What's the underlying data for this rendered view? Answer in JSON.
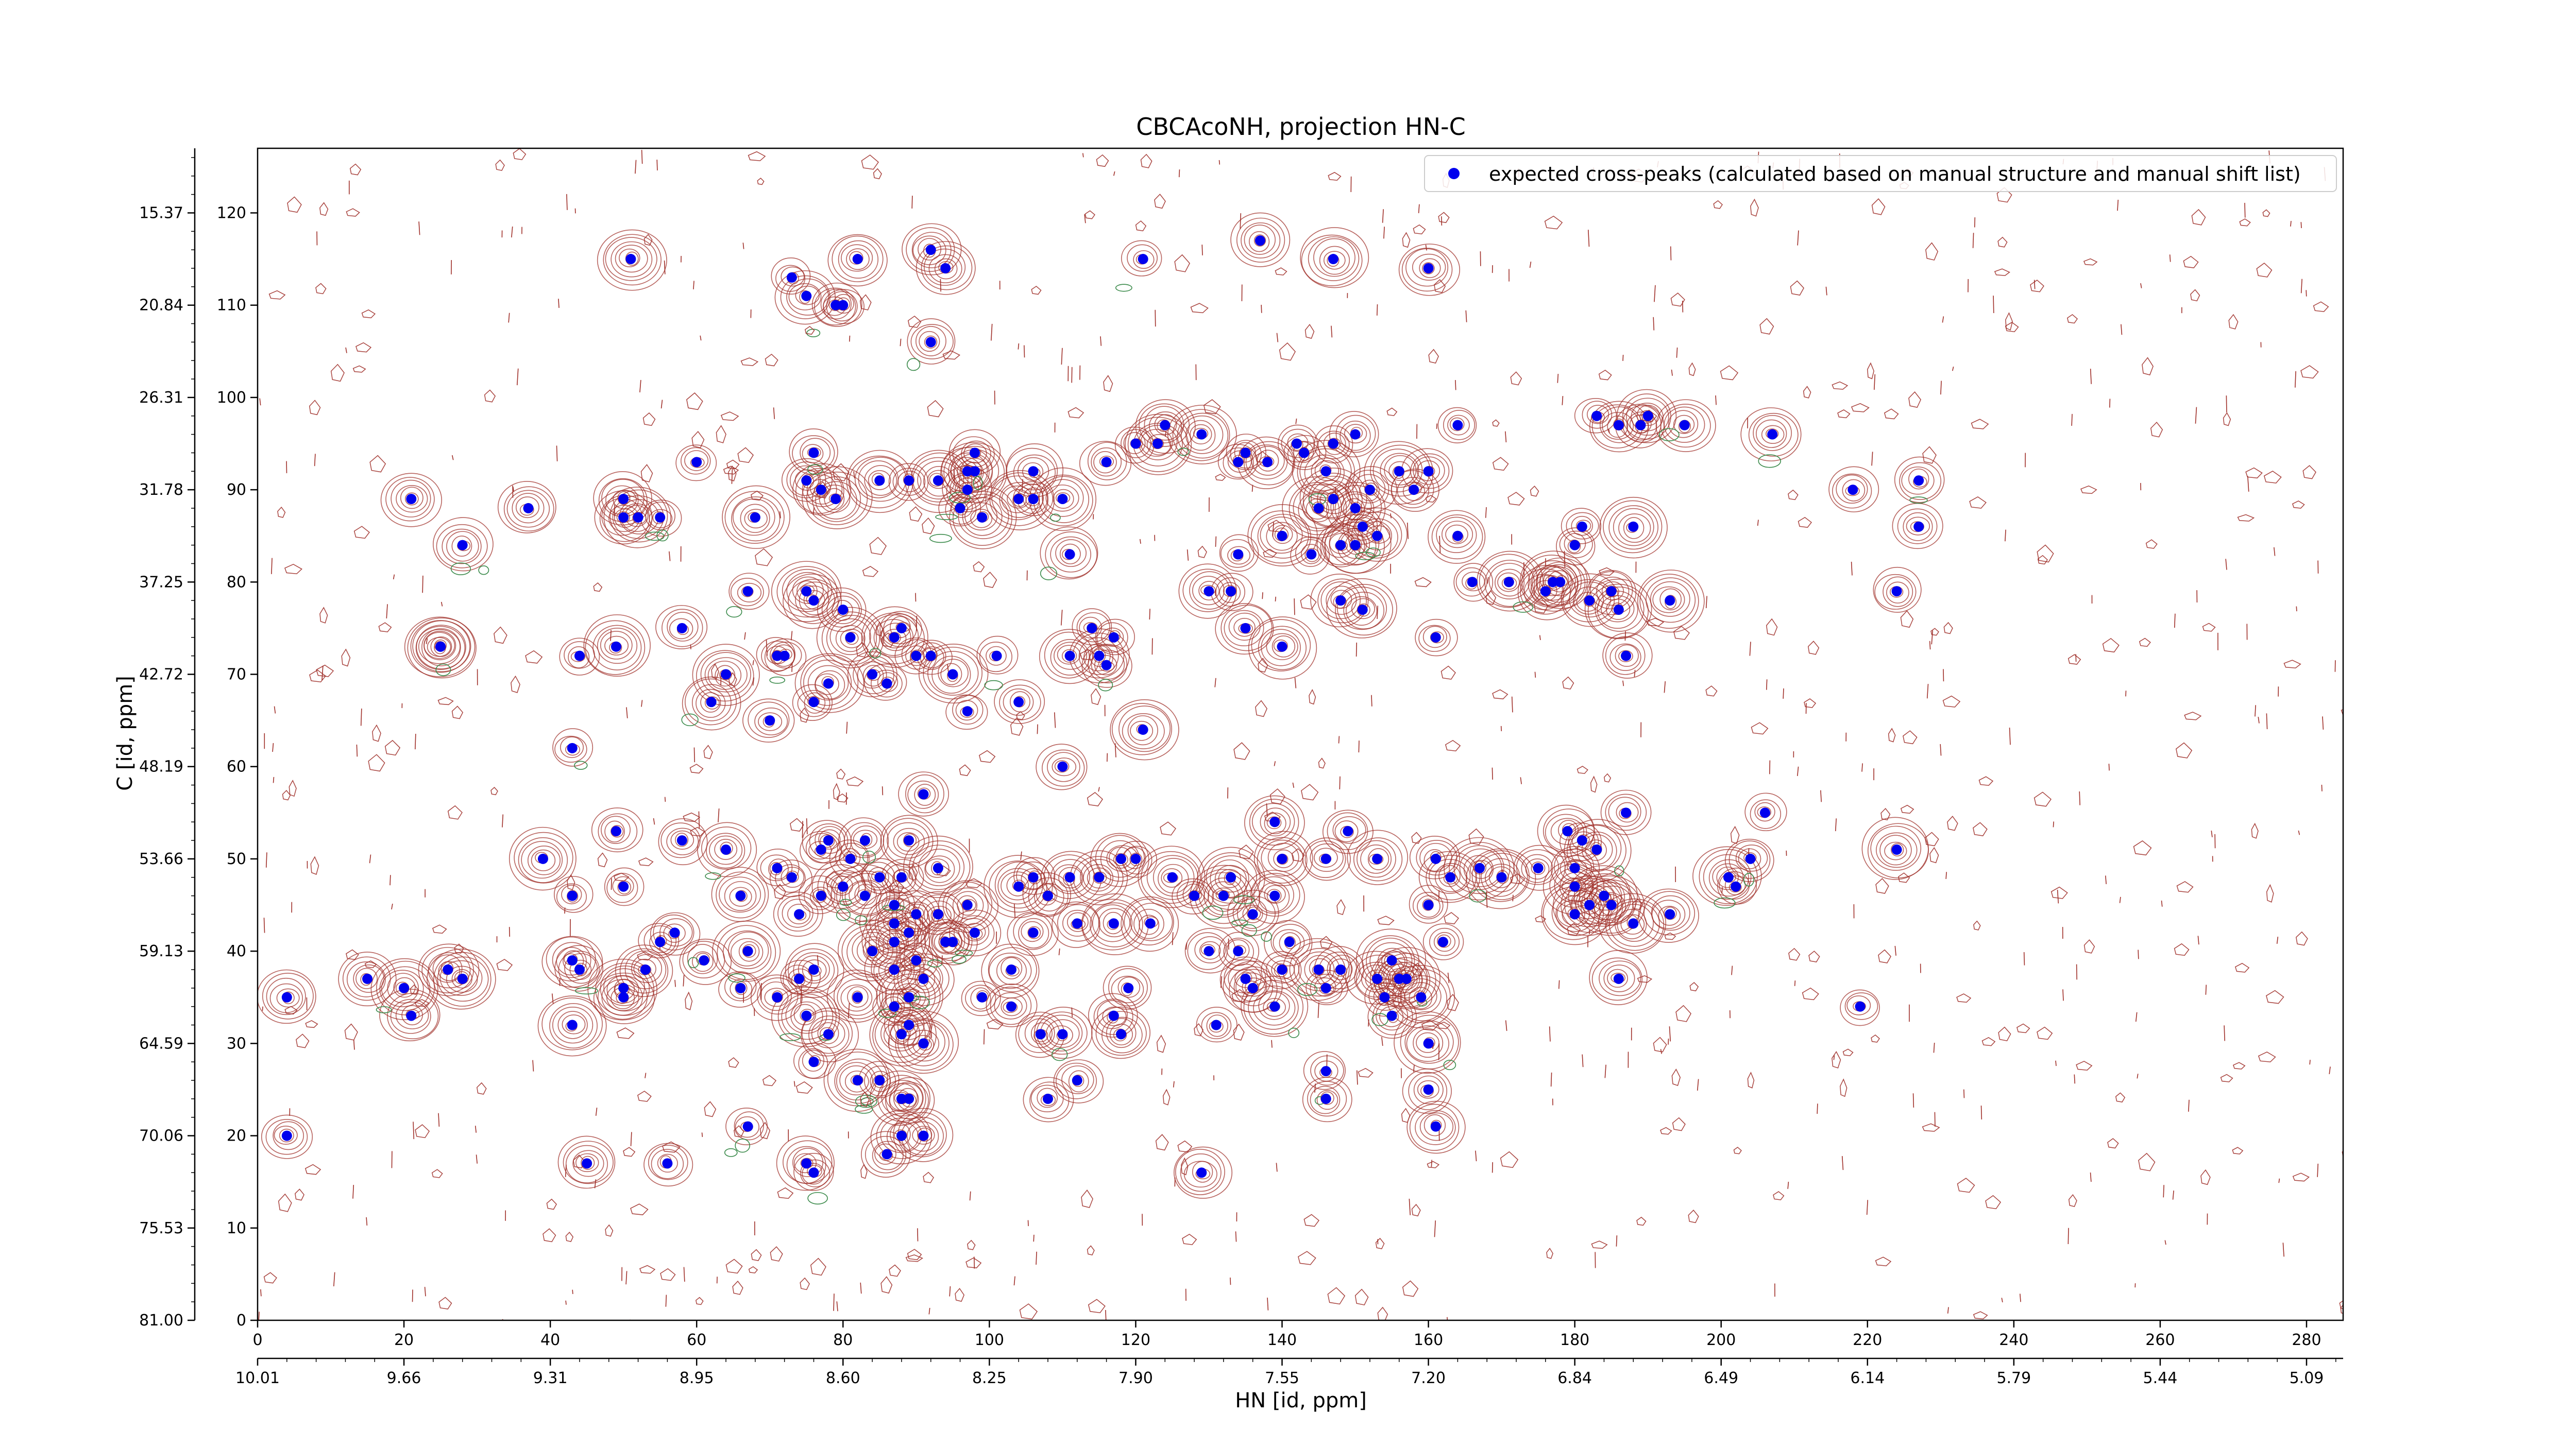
{
  "chart_data": {
    "type": "scatter",
    "title": "CBCAcoNH, projection HN-C",
    "xlabel": "HN [id, ppm]",
    "ylabel": "C [id, ppm]",
    "x_ticks": [
      "0",
      "20",
      "40",
      "60",
      "80",
      "100",
      "120",
      "140",
      "160",
      "180",
      "200",
      "220",
      "240",
      "260",
      "280"
    ],
    "x_ppm_ticks": [
      "10.01",
      "9.66",
      "9.31",
      "8.95",
      "8.60",
      "8.25",
      "7.90",
      "7.55",
      "7.20",
      "6.84",
      "6.49",
      "6.14",
      "5.79",
      "5.44",
      "5.09"
    ],
    "y_ticks": [
      "0",
      "10",
      "20",
      "30",
      "40",
      "50",
      "60",
      "70",
      "80",
      "90",
      "100",
      "110",
      "120"
    ],
    "y_ppm_ticks": [
      "81.00",
      "75.53",
      "70.06",
      "64.59",
      "59.13",
      "53.66",
      "48.19",
      "42.72",
      "37.25",
      "31.78",
      "26.31",
      "20.84",
      "15.37"
    ],
    "xlim": [
      0,
      285
    ],
    "ylim": [
      0,
      127
    ],
    "grid": false,
    "legend_position": "top-right",
    "contour_colors": {
      "positive": "#a0302a",
      "negative": "#3a8a4a"
    },
    "marker_color": "#0000ee",
    "series": [
      {
        "name": "expected cross-peaks (calculated based on manual structure and manual shift list)",
        "points": [
          [
            4,
            35
          ],
          [
            4,
            20
          ],
          [
            15,
            37
          ],
          [
            20,
            36
          ],
          [
            21,
            33
          ],
          [
            21,
            89
          ],
          [
            25,
            73
          ],
          [
            25,
            73
          ],
          [
            26,
            38
          ],
          [
            28,
            84
          ],
          [
            28,
            37
          ],
          [
            37,
            88
          ],
          [
            39,
            50
          ],
          [
            43,
            62
          ],
          [
            43,
            46
          ],
          [
            43,
            39
          ],
          [
            43,
            32
          ],
          [
            44,
            38
          ],
          [
            44,
            72
          ],
          [
            45,
            17
          ],
          [
            49,
            53
          ],
          [
            49,
            73
          ],
          [
            50,
            89
          ],
          [
            50,
            87
          ],
          [
            50,
            36
          ],
          [
            50,
            35
          ],
          [
            50,
            47
          ],
          [
            51,
            115
          ],
          [
            52,
            87
          ],
          [
            53,
            38
          ],
          [
            55,
            87
          ],
          [
            55,
            41
          ],
          [
            56,
            17
          ],
          [
            57,
            42
          ],
          [
            58,
            52
          ],
          [
            58,
            75
          ],
          [
            60,
            93
          ],
          [
            61,
            39
          ],
          [
            62,
            67
          ],
          [
            64,
            70
          ],
          [
            64,
            51
          ],
          [
            66,
            36
          ],
          [
            66,
            46
          ],
          [
            67,
            40
          ],
          [
            67,
            21
          ],
          [
            67,
            79
          ],
          [
            68,
            87
          ],
          [
            70,
            65
          ],
          [
            71,
            72
          ],
          [
            71,
            49
          ],
          [
            71,
            35
          ],
          [
            72,
            72
          ],
          [
            73,
            48
          ],
          [
            73,
            113
          ],
          [
            74,
            37
          ],
          [
            74,
            44
          ],
          [
            75,
            111
          ],
          [
            75,
            91
          ],
          [
            75,
            17
          ],
          [
            75,
            79
          ],
          [
            75,
            33
          ],
          [
            76,
            16
          ],
          [
            76,
            67
          ],
          [
            76,
            38
          ],
          [
            76,
            78
          ],
          [
            76,
            94
          ],
          [
            76,
            28
          ],
          [
            77,
            90
          ],
          [
            77,
            46
          ],
          [
            77,
            51
          ],
          [
            78,
            31
          ],
          [
            78,
            69
          ],
          [
            78,
            52
          ],
          [
            79,
            89
          ],
          [
            79,
            110
          ],
          [
            80,
            110
          ],
          [
            80,
            47
          ],
          [
            80,
            77
          ],
          [
            81,
            50
          ],
          [
            81,
            74
          ],
          [
            82,
            115
          ],
          [
            82,
            26
          ],
          [
            82,
            35
          ],
          [
            83,
            52
          ],
          [
            83,
            46
          ],
          [
            84,
            70
          ],
          [
            84,
            40
          ],
          [
            85,
            48
          ],
          [
            85,
            91
          ],
          [
            85,
            26
          ],
          [
            86,
            69
          ],
          [
            86,
            18
          ],
          [
            87,
            43
          ],
          [
            87,
            45
          ],
          [
            87,
            41
          ],
          [
            87,
            34
          ],
          [
            87,
            38
          ],
          [
            87,
            74
          ],
          [
            88,
            31
          ],
          [
            88,
            20
          ],
          [
            88,
            24
          ],
          [
            88,
            75
          ],
          [
            88,
            48
          ],
          [
            89,
            91
          ],
          [
            89,
            42
          ],
          [
            89,
            52
          ],
          [
            89,
            24
          ],
          [
            89,
            35
          ],
          [
            89,
            32
          ],
          [
            90,
            39
          ],
          [
            90,
            72
          ],
          [
            90,
            44
          ],
          [
            91,
            30
          ],
          [
            91,
            20
          ],
          [
            91,
            57
          ],
          [
            91,
            37
          ],
          [
            92,
            116
          ],
          [
            92,
            106
          ],
          [
            92,
            72
          ],
          [
            93,
            91
          ],
          [
            93,
            49
          ],
          [
            93,
            44
          ],
          [
            94,
            114
          ],
          [
            94,
            41
          ],
          [
            95,
            70
          ],
          [
            95,
            41
          ],
          [
            96,
            88
          ],
          [
            97,
            92
          ],
          [
            97,
            90
          ],
          [
            97,
            66
          ],
          [
            97,
            45
          ],
          [
            98,
            42
          ],
          [
            98,
            94
          ],
          [
            98,
            92
          ],
          [
            99,
            35
          ],
          [
            99,
            87
          ],
          [
            101,
            72
          ],
          [
            103,
            38
          ],
          [
            103,
            34
          ],
          [
            104,
            47
          ],
          [
            104,
            67
          ],
          [
            104,
            89
          ],
          [
            106,
            92
          ],
          [
            106,
            89
          ],
          [
            106,
            48
          ],
          [
            106,
            42
          ],
          [
            107,
            31
          ],
          [
            108,
            46
          ],
          [
            108,
            24
          ],
          [
            110,
            89
          ],
          [
            110,
            31
          ],
          [
            110,
            60
          ],
          [
            111,
            83
          ],
          [
            111,
            48
          ],
          [
            111,
            72
          ],
          [
            112,
            43
          ],
          [
            112,
            26
          ],
          [
            114,
            75
          ],
          [
            115,
            72
          ],
          [
            115,
            48
          ],
          [
            116,
            71
          ],
          [
            116,
            93
          ],
          [
            117,
            74
          ],
          [
            117,
            43
          ],
          [
            117,
            33
          ],
          [
            118,
            50
          ],
          [
            118,
            31
          ],
          [
            119,
            36
          ],
          [
            120,
            95
          ],
          [
            120,
            50
          ],
          [
            121,
            115
          ],
          [
            121,
            64
          ],
          [
            122,
            43
          ],
          [
            123,
            95
          ],
          [
            124,
            97
          ],
          [
            125,
            48
          ],
          [
            128,
            46
          ],
          [
            129,
            96
          ],
          [
            129,
            16
          ],
          [
            130,
            40
          ],
          [
            130,
            79
          ],
          [
            131,
            32
          ],
          [
            132,
            46
          ],
          [
            133,
            79
          ],
          [
            133,
            48
          ],
          [
            134,
            40
          ],
          [
            134,
            93
          ],
          [
            134,
            83
          ],
          [
            135,
            94
          ],
          [
            135,
            75
          ],
          [
            135,
            37
          ],
          [
            136,
            44
          ],
          [
            136,
            36
          ],
          [
            137,
            117
          ],
          [
            138,
            93
          ],
          [
            139,
            46
          ],
          [
            139,
            34
          ],
          [
            139,
            54
          ],
          [
            140,
            85
          ],
          [
            140,
            50
          ],
          [
            140,
            73
          ],
          [
            140,
            38
          ],
          [
            141,
            41
          ],
          [
            142,
            95
          ],
          [
            143,
            94
          ],
          [
            144,
            83
          ],
          [
            145,
            38
          ],
          [
            145,
            88
          ],
          [
            146,
            36
          ],
          [
            146,
            27
          ],
          [
            146,
            92
          ],
          [
            146,
            50
          ],
          [
            146,
            24
          ],
          [
            147,
            95
          ],
          [
            147,
            115
          ],
          [
            147,
            89
          ],
          [
            148,
            38
          ],
          [
            148,
            84
          ],
          [
            148,
            78
          ],
          [
            149,
            53
          ],
          [
            150,
            84
          ],
          [
            150,
            88
          ],
          [
            150,
            96
          ],
          [
            151,
            86
          ],
          [
            151,
            77
          ],
          [
            152,
            90
          ],
          [
            153,
            37
          ],
          [
            153,
            85
          ],
          [
            153,
            50
          ],
          [
            154,
            35
          ],
          [
            155,
            33
          ],
          [
            155,
            39
          ],
          [
            156,
            37
          ],
          [
            156,
            92
          ],
          [
            157,
            37
          ],
          [
            158,
            90
          ],
          [
            159,
            35
          ],
          [
            160,
            114
          ],
          [
            160,
            92
          ],
          [
            160,
            25
          ],
          [
            160,
            30
          ],
          [
            160,
            45
          ],
          [
            161,
            50
          ],
          [
            161,
            21
          ],
          [
            161,
            74
          ],
          [
            162,
            41
          ],
          [
            163,
            48
          ],
          [
            164,
            97
          ],
          [
            164,
            85
          ],
          [
            166,
            80
          ],
          [
            167,
            49
          ],
          [
            170,
            48
          ],
          [
            171,
            80
          ],
          [
            175,
            49
          ],
          [
            176,
            79
          ],
          [
            177,
            80
          ],
          [
            178,
            80
          ],
          [
            179,
            53
          ],
          [
            180,
            49
          ],
          [
            180,
            84
          ],
          [
            180,
            47
          ],
          [
            180,
            44
          ],
          [
            181,
            52
          ],
          [
            181,
            86
          ],
          [
            182,
            45
          ],
          [
            182,
            78
          ],
          [
            183,
            98
          ],
          [
            183,
            51
          ],
          [
            184,
            46
          ],
          [
            185,
            45
          ],
          [
            185,
            79
          ],
          [
            186,
            97
          ],
          [
            186,
            77
          ],
          [
            186,
            37
          ],
          [
            187,
            55
          ],
          [
            187,
            72
          ],
          [
            188,
            43
          ],
          [
            188,
            86
          ],
          [
            189,
            97
          ],
          [
            190,
            98
          ],
          [
            193,
            78
          ],
          [
            193,
            44
          ],
          [
            195,
            97
          ],
          [
            201,
            48
          ],
          [
            202,
            47
          ],
          [
            204,
            50
          ],
          [
            206,
            55
          ],
          [
            207,
            96
          ],
          [
            218,
            90
          ],
          [
            219,
            34
          ],
          [
            224,
            51
          ],
          [
            224,
            79
          ],
          [
            227,
            91
          ],
          [
            227,
            86
          ]
        ]
      }
    ]
  }
}
